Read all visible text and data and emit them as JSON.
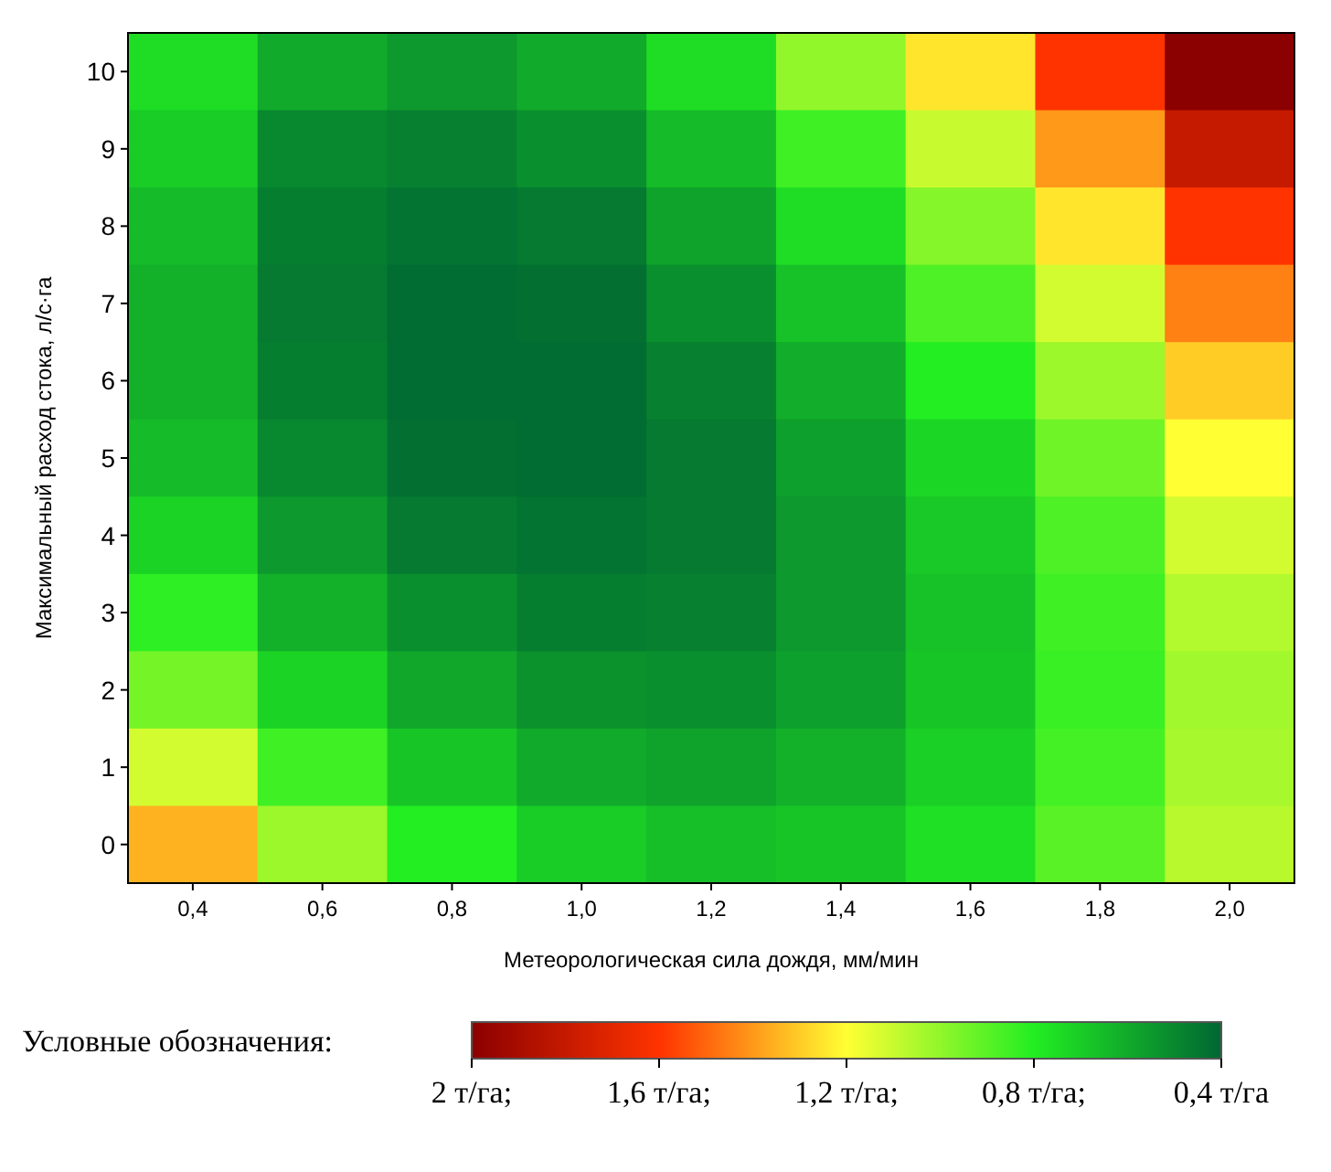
{
  "chart_data": {
    "type": "heatmap",
    "xlabel": "Метеорологическая сила дождя, мм/мин",
    "ylabel": "Максимальный расход стока, л/с·га",
    "legend_title": "Условные обозначения:",
    "categories": [
      "0,4",
      "0,6",
      "0,8",
      "1,0",
      "1,2",
      "1,4",
      "1,6",
      "1,8",
      "2,0"
    ],
    "y_categories": [
      "10",
      "9",
      "8",
      "7",
      "6",
      "5",
      "4",
      "3",
      "2",
      "1",
      "0"
    ],
    "cells": [
      [
        0.75,
        0.6,
        0.55,
        0.6,
        0.75,
        1.0,
        1.25,
        1.6,
        2.0
      ],
      [
        0.7,
        0.5,
        0.48,
        0.52,
        0.65,
        0.85,
        1.1,
        1.4,
        1.8
      ],
      [
        0.65,
        0.47,
        0.44,
        0.46,
        0.58,
        0.75,
        0.98,
        1.25,
        1.6
      ],
      [
        0.62,
        0.46,
        0.42,
        0.43,
        0.52,
        0.67,
        0.88,
        1.12,
        1.45
      ],
      [
        0.62,
        0.47,
        0.42,
        0.42,
        0.48,
        0.61,
        0.8,
        1.02,
        1.3
      ],
      [
        0.65,
        0.5,
        0.43,
        0.42,
        0.46,
        0.57,
        0.73,
        0.94,
        1.2
      ],
      [
        0.72,
        0.55,
        0.46,
        0.44,
        0.46,
        0.55,
        0.69,
        0.88,
        1.12
      ],
      [
        0.82,
        0.62,
        0.52,
        0.47,
        0.48,
        0.55,
        0.67,
        0.85,
        1.06
      ],
      [
        0.95,
        0.72,
        0.59,
        0.53,
        0.52,
        0.57,
        0.68,
        0.84,
        1.03
      ],
      [
        1.12,
        0.85,
        0.68,
        0.6,
        0.58,
        0.62,
        0.71,
        0.86,
        1.04
      ],
      [
        1.35,
        1.02,
        0.8,
        0.7,
        0.66,
        0.68,
        0.76,
        0.9,
        1.07
      ]
    ],
    "clim": [
      0.4,
      2
    ],
    "cticks": [
      {
        "value": 2,
        "label": "2 т/га;"
      },
      {
        "value": 1.6,
        "label": "1,6 т/га;"
      },
      {
        "value": 1.2,
        "label": "1,2 т/га;"
      },
      {
        "value": 0.8,
        "label": "0,8 т/га;"
      },
      {
        "value": 0.4,
        "label": "0,4 т/га"
      }
    ]
  }
}
